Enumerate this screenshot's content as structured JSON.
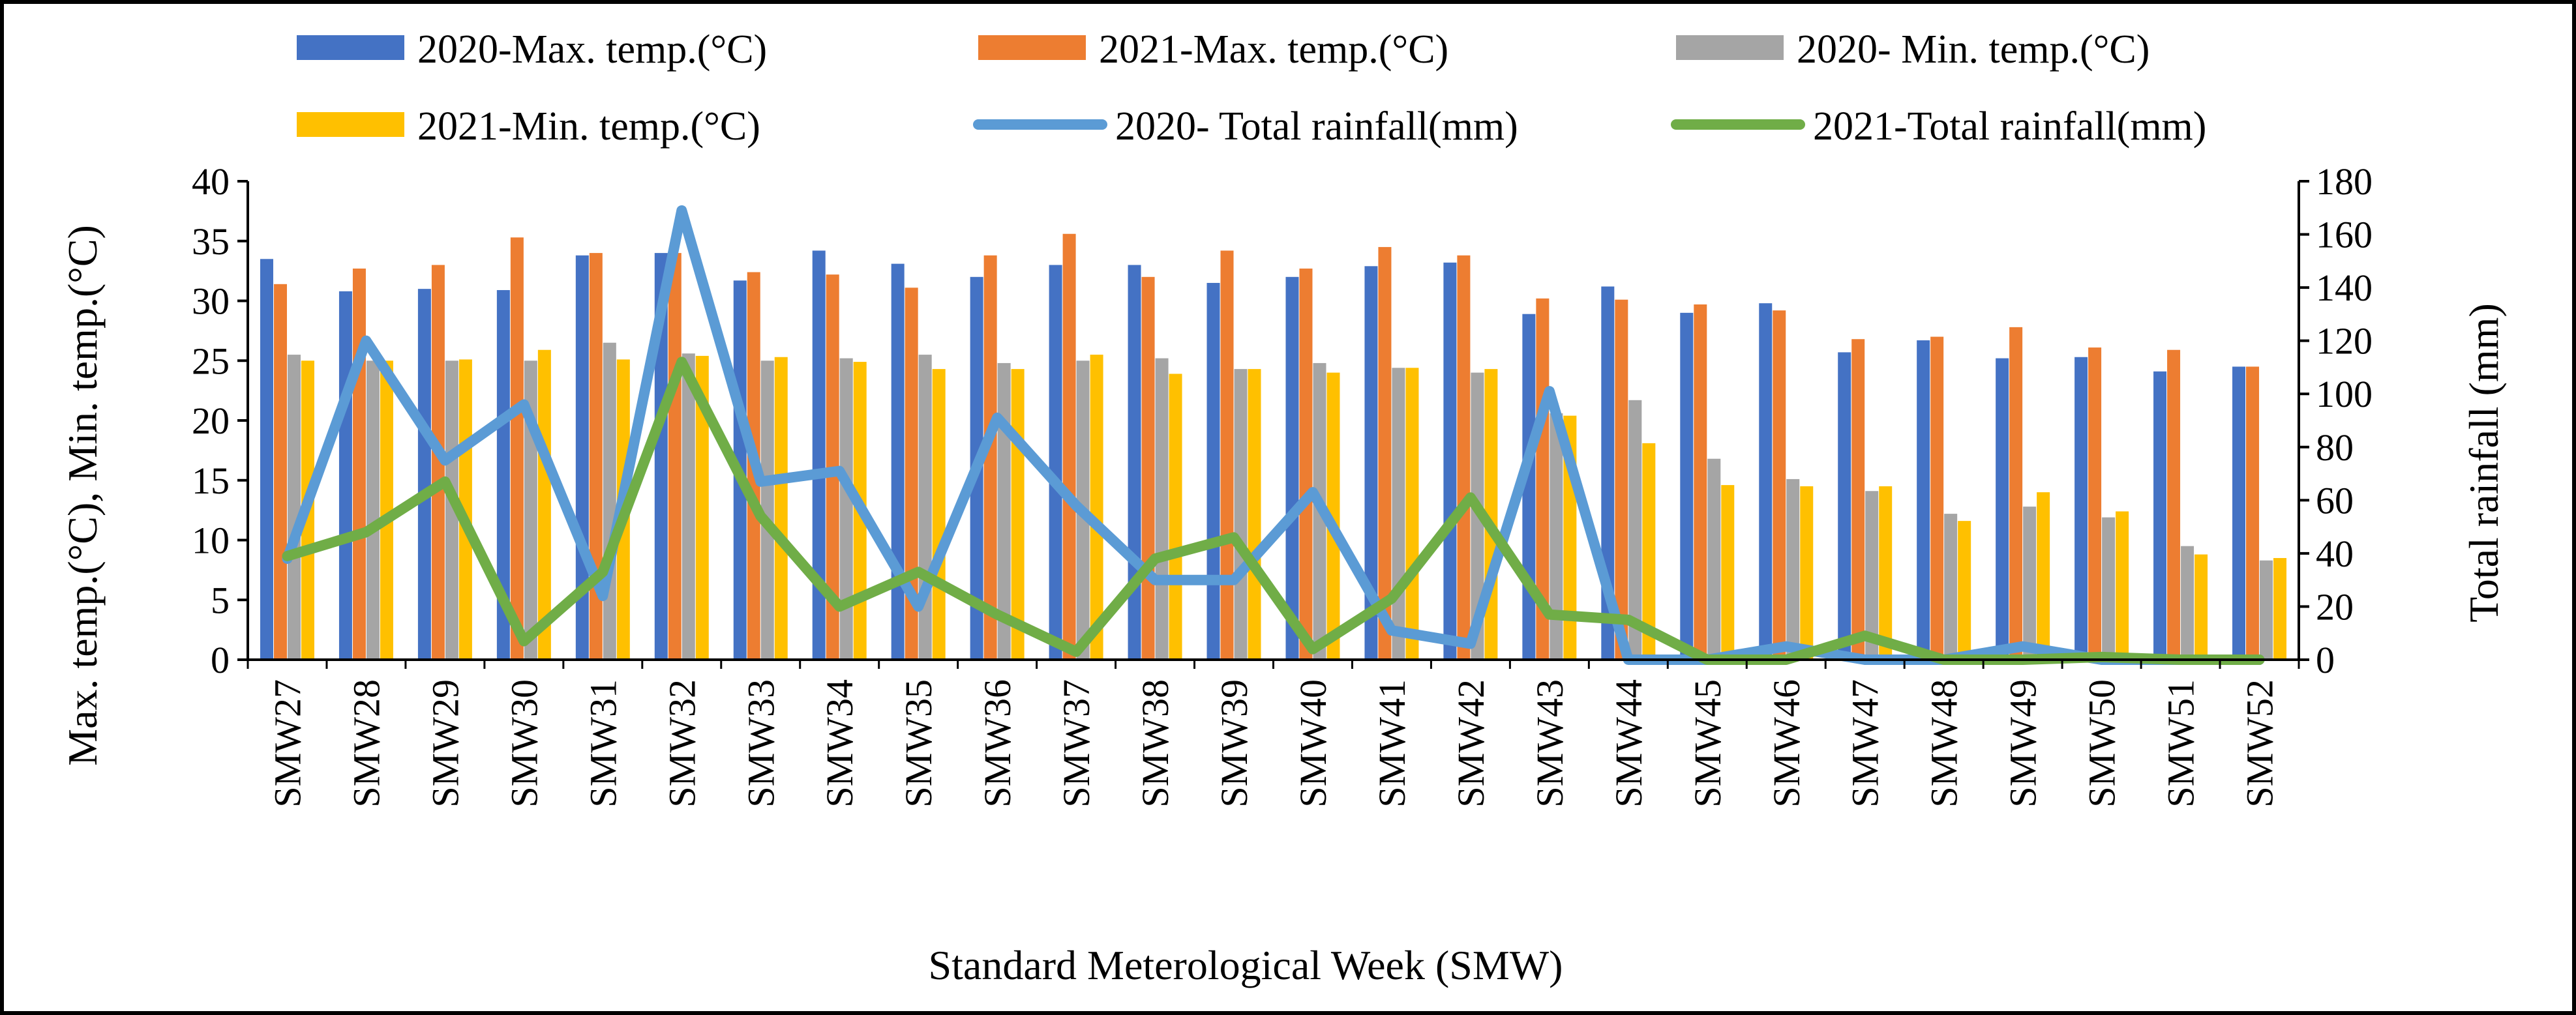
{
  "chart_data": {
    "type": "bar",
    "xlabel": "Standard Meterological Week (SMW)",
    "ylabel": "Max. temp.(°C), Min. temp.(°C)",
    "y2label": "Total rainfall (mm)",
    "ylim": [
      0,
      40
    ],
    "y2lim": [
      0,
      180
    ],
    "yticks": [
      "0",
      "5",
      "10",
      "15",
      "20",
      "25",
      "30",
      "35",
      "40"
    ],
    "y2ticks": [
      "0",
      "20",
      "40",
      "60",
      "80",
      "100",
      "120",
      "140",
      "160",
      "180"
    ],
    "legend_position": "top",
    "categories": [
      "SMW27",
      "SMW28",
      "SMW29",
      "SMW30",
      "SMW31",
      "SMW32",
      "SMW33",
      "SMW34",
      "SMW35",
      "SMW36",
      "SMW37",
      "SMW38",
      "SMW39",
      "SMW40",
      "SMW41",
      "SMW42",
      "SMW43",
      "SMW44",
      "SMW45",
      "SMW46",
      "SMW47",
      "SMW48",
      "SMW49",
      "SMW50",
      "SMW51",
      "SMW52"
    ],
    "bar_series": [
      {
        "name": "2020-Max. temp.(°C)",
        "color": "#4472C4",
        "values": [
          33.5,
          30.8,
          31.0,
          30.9,
          33.8,
          34.0,
          31.7,
          34.2,
          33.1,
          32.0,
          33.0,
          33.0,
          31.5,
          32.0,
          32.9,
          33.2,
          28.9,
          31.2,
          29.0,
          29.8,
          25.7,
          26.7,
          25.2,
          25.3,
          24.1,
          24.5
        ]
      },
      {
        "name": "2021-Max. temp.(°C)",
        "color": "#ED7D31",
        "values": [
          31.4,
          32.7,
          33.0,
          35.3,
          34.0,
          34.0,
          32.4,
          32.2,
          31.1,
          33.8,
          35.6,
          32.0,
          34.2,
          32.7,
          34.5,
          33.8,
          30.2,
          30.1,
          29.7,
          29.2,
          26.8,
          27.0,
          27.8,
          26.1,
          25.9,
          24.5
        ]
      },
      {
        "name": "2020- Min. temp.(°C)",
        "color": "#A5A5A5",
        "values": [
          25.5,
          25.0,
          25.0,
          25.0,
          26.5,
          25.6,
          25.0,
          25.2,
          25.5,
          24.8,
          25.0,
          25.2,
          24.3,
          24.8,
          24.4,
          24.0,
          20.6,
          21.7,
          16.8,
          15.1,
          14.1,
          12.2,
          12.8,
          11.9,
          9.5,
          8.3
        ]
      },
      {
        "name": "2021-Min. temp.(°C)",
        "color": "#FFC000",
        "values": [
          25.0,
          25.0,
          25.1,
          25.9,
          25.1,
          25.4,
          25.3,
          24.9,
          24.3,
          24.3,
          25.5,
          23.9,
          24.3,
          24.0,
          24.4,
          24.3,
          20.4,
          18.1,
          14.6,
          14.5,
          14.5,
          11.6,
          14.0,
          12.4,
          8.8,
          8.5
        ]
      }
    ],
    "line_series": [
      {
        "name": "2020- Total rainfall(mm)",
        "color": "#5B9BD5",
        "axis": "right",
        "values": [
          38,
          120,
          75,
          96,
          24,
          169,
          67,
          71,
          20,
          91,
          58,
          30,
          30,
          63,
          11,
          6,
          101,
          0,
          0,
          5,
          0,
          0,
          5,
          0,
          0,
          0
        ]
      },
      {
        "name": "2021-Total rainfall(mm)",
        "color": "#70AD47",
        "axis": "right",
        "values": [
          39,
          48,
          67,
          7,
          33,
          112,
          54,
          20,
          33,
          17,
          3,
          38,
          46,
          4,
          23,
          61,
          17,
          15,
          0,
          0,
          9,
          0,
          0,
          1,
          0,
          0
        ]
      }
    ]
  }
}
